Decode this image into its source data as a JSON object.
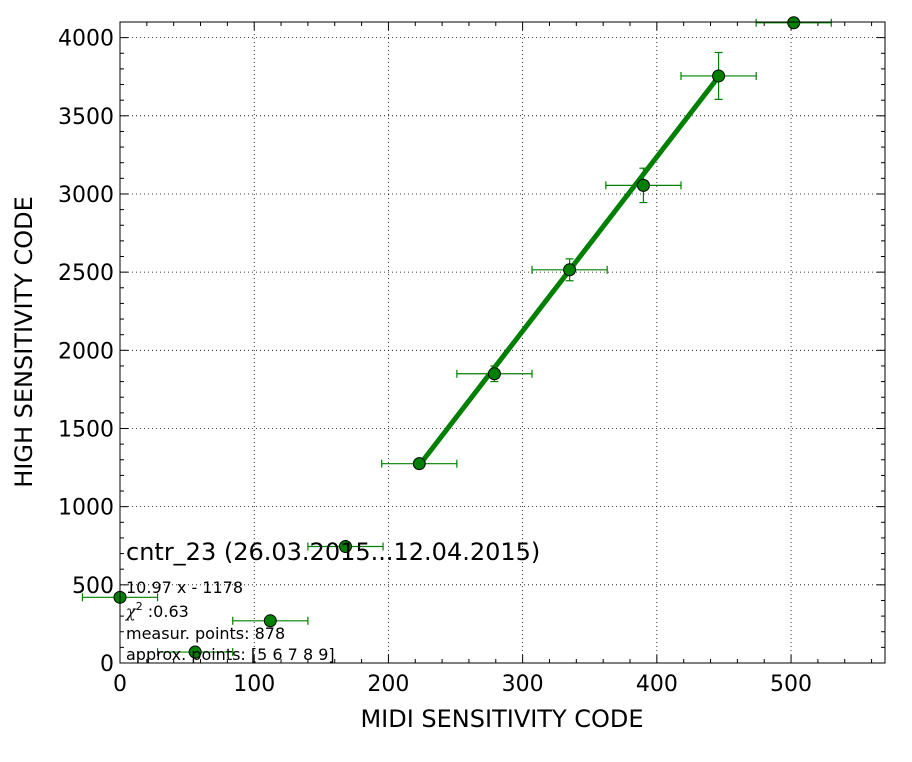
{
  "chart_data": {
    "type": "scatter",
    "xlabel": "MIDI SENSITIVITY CODE",
    "ylabel": "HIGH SENSITIVITY CODE",
    "xlim": [
      0,
      570
    ],
    "ylim": [
      0,
      4100
    ],
    "xticks": [
      0,
      100,
      200,
      300,
      400,
      500
    ],
    "yticks": [
      0,
      500,
      1000,
      1500,
      2000,
      2500,
      3000,
      3500,
      4000
    ],
    "grid": true,
    "color": "#008000",
    "points": [
      {
        "x": 0,
        "y": 420,
        "xerr": 28,
        "yerr": 0
      },
      {
        "x": 56,
        "y": 70,
        "xerr": 28,
        "yerr": 0
      },
      {
        "x": 112,
        "y": 270,
        "xerr": 28,
        "yerr": 0
      },
      {
        "x": 168,
        "y": 745,
        "xerr": 28,
        "yerr": 0
      },
      {
        "x": 223,
        "y": 1275,
        "xerr": 28,
        "yerr": 20
      },
      {
        "x": 279,
        "y": 1850,
        "xerr": 28,
        "yerr": 50
      },
      {
        "x": 335,
        "y": 2515,
        "xerr": 28,
        "yerr": 70
      },
      {
        "x": 390,
        "y": 3055,
        "xerr": 28,
        "yerr": 110
      },
      {
        "x": 446,
        "y": 3755,
        "xerr": 28,
        "yerr": 150
      },
      {
        "x": 502,
        "y": 4095,
        "xerr": 28,
        "yerr": 0
      }
    ],
    "fit": {
      "x0": 223,
      "y0": 1265,
      "x1": 446,
      "y1": 3750
    },
    "annotations": {
      "title": "cntr_23 (26.03.2015...12.04.2015)",
      "line1": "10.97 x - 1178",
      "chi_symbol": "χ",
      "chi_exp": "2",
      "chi_value": " :0.63",
      "line3": "measur. points: 878",
      "line4": "approx. points: [5 6 7 8 9]"
    }
  }
}
